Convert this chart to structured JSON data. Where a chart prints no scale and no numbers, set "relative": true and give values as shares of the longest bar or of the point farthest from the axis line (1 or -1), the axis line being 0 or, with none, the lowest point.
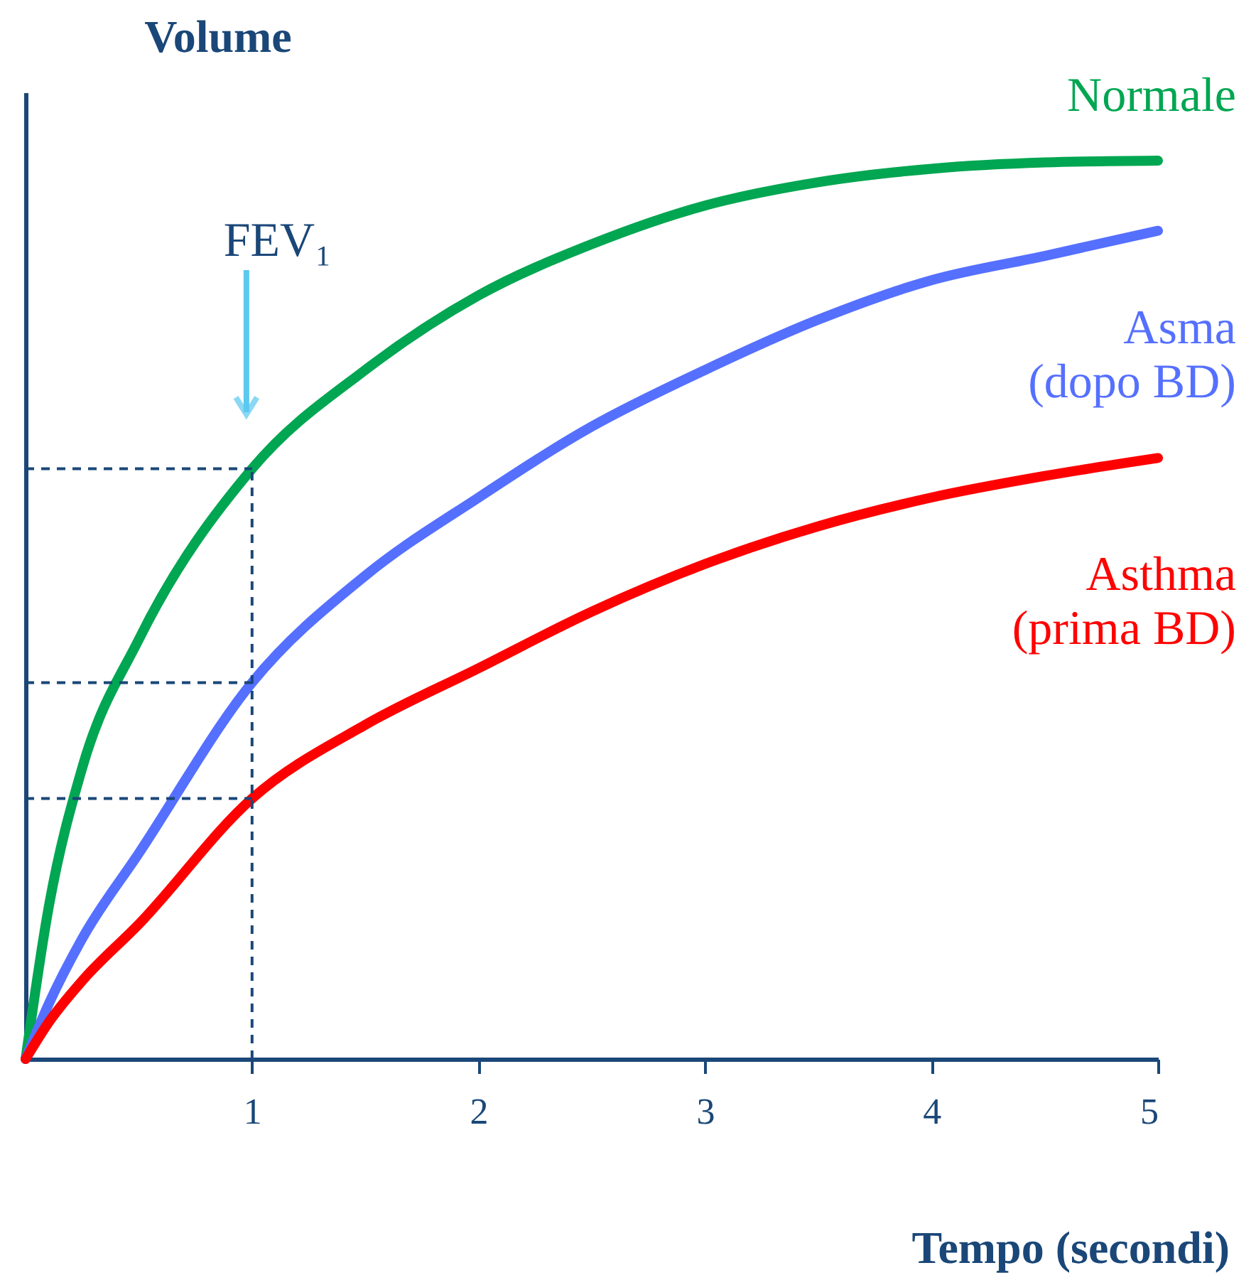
{
  "chart_data": {
    "type": "line",
    "relative": true,
    "ylabel": "Volume",
    "xlabel": "Tempo (secondi)",
    "x": [
      0,
      0.1,
      0.25,
      0.5,
      1,
      1.5,
      2,
      2.5,
      3,
      3.5,
      4,
      4.5,
      5
    ],
    "xlim": [
      0,
      5
    ],
    "xticks": [
      1,
      2,
      3,
      4,
      5
    ],
    "grid": false,
    "line_style": "solid",
    "tick_labels": "x",
    "series": [
      {
        "name": "Normale",
        "color": "#00a651",
        "values": [
          0,
          0.166,
          0.324,
          0.467,
          0.657,
          0.767,
          0.85,
          0.907,
          0.95,
          0.976,
          0.991,
          0.998,
          1
        ]
      },
      {
        "name": "Asma\n(dopo BD)",
        "color": "#5570ff",
        "values": [
          0,
          0.06,
          0.134,
          0.229,
          0.419,
          0.538,
          0.625,
          0.704,
          0.767,
          0.823,
          0.867,
          0.894,
          0.922
        ]
      },
      {
        "name": "Asthma\n(prima BD)",
        "color": "#ff0000",
        "values": [
          0,
          0.04,
          0.087,
          0.15,
          0.29,
          0.372,
          0.435,
          0.498,
          0.551,
          0.593,
          0.625,
          0.649,
          0.669
        ]
      }
    ],
    "ref_lines": [
      {
        "axis": "x",
        "value": 1,
        "color": "#1a4778",
        "line_style": "dashed"
      },
      {
        "axis": "y",
        "value": 0.657,
        "color": "#1a4778",
        "line_style": "dashed"
      },
      {
        "axis": "y",
        "value": 0.419,
        "color": "#1a4778",
        "line_style": "dashed"
      },
      {
        "axis": "y",
        "value": 0.29,
        "color": "#1a4778",
        "line_style": "dashed"
      }
    ],
    "annotations": [
      "FEV₁"
    ]
  }
}
